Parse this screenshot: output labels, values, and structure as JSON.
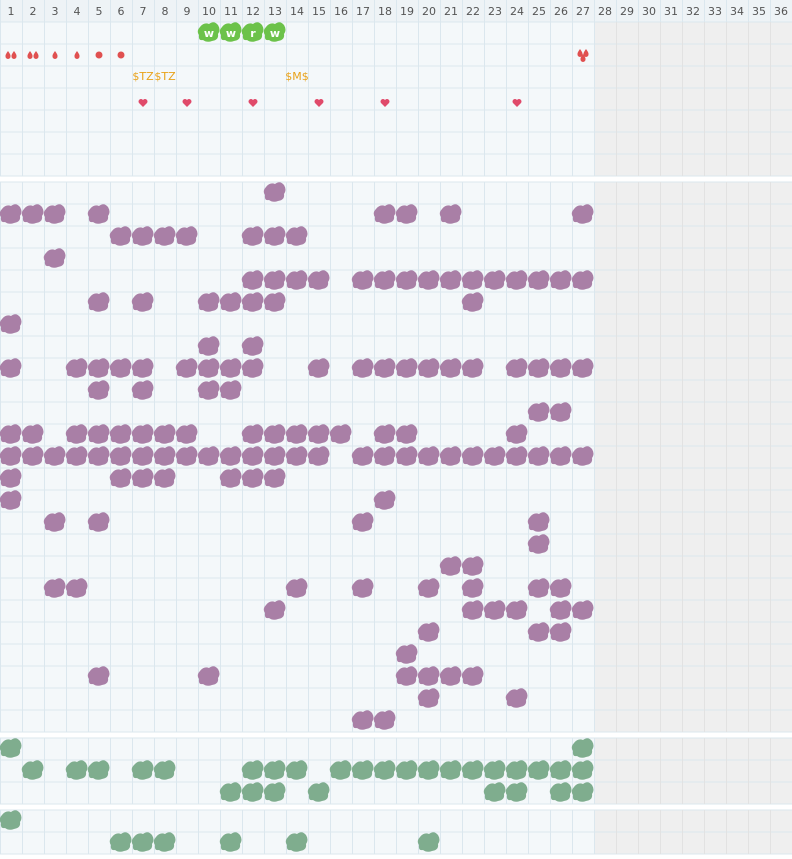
{
  "header": {
    "days": [
      "1",
      "2",
      "3",
      "4",
      "5",
      "6",
      "7",
      "8",
      "9",
      "10",
      "11",
      "12",
      "13",
      "14",
      "15",
      "16",
      "17",
      "18",
      "19",
      "20",
      "21",
      "22",
      "23",
      "24",
      "25",
      "26",
      "27",
      "28",
      "29",
      "30",
      "31",
      "32",
      "33",
      "34",
      "35",
      "36"
    ]
  },
  "badges": [
    "w",
    "w",
    "r",
    "w"
  ],
  "tags": [
    "$TZ",
    "$TZ",
    "$M$"
  ]
}
